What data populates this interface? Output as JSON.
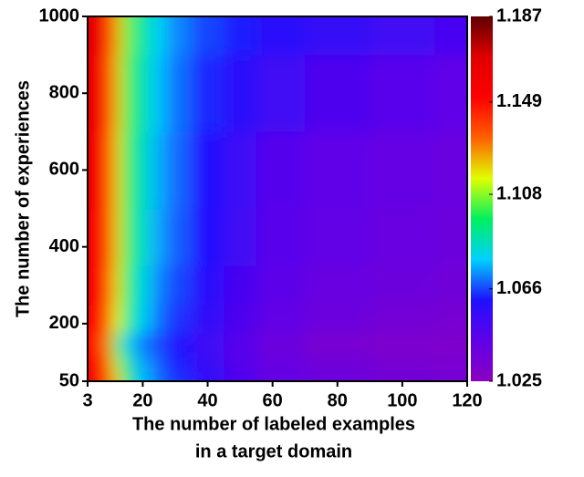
{
  "chart_data": {
    "type": "heatmap",
    "xlabel": [
      "The number of labeled examples",
      "in a target domain"
    ],
    "ylabel": "The number of experiences",
    "x": [
      3,
      6,
      9,
      12,
      15,
      20,
      25,
      30,
      40,
      50,
      60,
      80,
      100,
      120
    ],
    "y": [
      50,
      100,
      150,
      200,
      300,
      400,
      600,
      800,
      1000
    ],
    "z": [
      [
        1.16,
        1.155,
        1.14,
        1.12,
        1.095,
        1.078,
        1.07,
        1.064,
        1.056,
        1.048,
        1.042,
        1.038,
        1.036,
        1.035
      ],
      [
        1.155,
        1.15,
        1.138,
        1.11,
        1.09,
        1.075,
        1.068,
        1.062,
        1.054,
        1.046,
        1.04,
        1.036,
        1.033,
        1.032
      ],
      [
        1.15,
        1.148,
        1.13,
        1.1,
        1.08,
        1.07,
        1.066,
        1.06,
        1.052,
        1.045,
        1.038,
        1.032,
        1.03,
        1.03
      ],
      [
        1.155,
        1.152,
        1.14,
        1.115,
        1.095,
        1.08,
        1.07,
        1.064,
        1.056,
        1.048,
        1.042,
        1.038,
        1.035,
        1.033
      ],
      [
        1.158,
        1.154,
        1.144,
        1.118,
        1.098,
        1.082,
        1.072,
        1.066,
        1.058,
        1.05,
        1.044,
        1.04,
        1.038,
        1.036
      ],
      [
        1.16,
        1.155,
        1.145,
        1.12,
        1.1,
        1.085,
        1.075,
        1.068,
        1.06,
        1.052,
        1.045,
        1.042,
        1.04,
        1.038
      ],
      [
        1.162,
        1.156,
        1.146,
        1.12,
        1.1,
        1.086,
        1.076,
        1.069,
        1.061,
        1.053,
        1.046,
        1.043,
        1.041,
        1.039
      ],
      [
        1.165,
        1.158,
        1.148,
        1.122,
        1.102,
        1.088,
        1.078,
        1.07,
        1.063,
        1.058,
        1.052,
        1.048,
        1.045,
        1.043
      ],
      [
        1.17,
        1.16,
        1.15,
        1.125,
        1.105,
        1.09,
        1.08,
        1.072,
        1.066,
        1.062,
        1.058,
        1.055,
        1.052,
        1.05
      ]
    ],
    "xlim": [
      3,
      120
    ],
    "xticks": [
      3,
      20,
      40,
      60,
      80,
      100,
      120
    ],
    "ylim": [
      50,
      1000
    ],
    "yticks": [
      50,
      200,
      400,
      600,
      800,
      1000
    ],
    "clim": [
      1.025,
      1.187
    ],
    "cticks": [
      1.025,
      1.066,
      1.108,
      1.149,
      1.187
    ],
    "colormap": [
      "#8a00c0",
      "#6000e8",
      "#2010ff",
      "#00d0ff",
      "#00f060",
      "#e0ff00",
      "#ff6000",
      "#ff0000",
      "#e00000",
      "#600000"
    ]
  }
}
